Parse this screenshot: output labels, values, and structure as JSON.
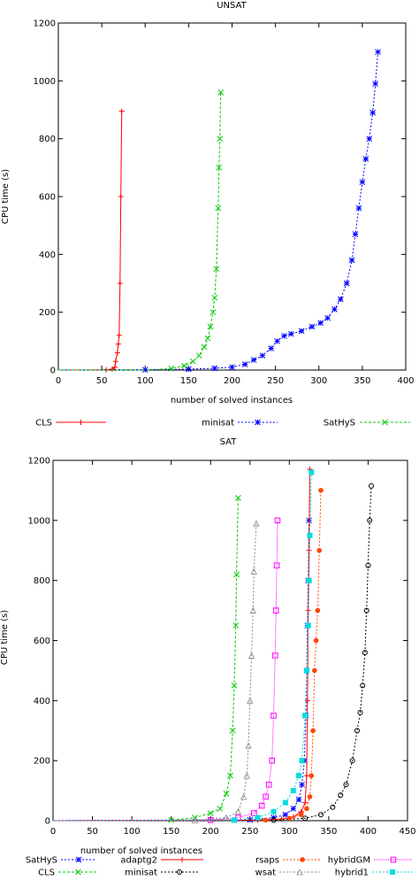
{
  "chart_data": [
    {
      "type": "line",
      "title": "UNSAT",
      "xlabel": "number of solved instances",
      "ylabel": "CPU time (s)",
      "xlim": [
        0,
        400
      ],
      "ylim": [
        0,
        1200
      ],
      "x_ticks": [
        0,
        50,
        100,
        150,
        200,
        250,
        300,
        350,
        400
      ],
      "y_ticks": [
        0,
        200,
        400,
        600,
        800,
        1000,
        1200
      ],
      "grid": false,
      "legend_position": "bottom",
      "series": [
        {
          "name": "CLS",
          "color": "#ff0000",
          "marker": "plus",
          "dash": "",
          "points": [
            [
              0,
              0
            ],
            [
              30,
              0
            ],
            [
              55,
              1
            ],
            [
              62,
              3
            ],
            [
              65,
              10
            ],
            [
              66,
              30
            ],
            [
              68,
              60
            ],
            [
              69,
              90
            ],
            [
              70,
              120
            ],
            [
              71,
              300
            ],
            [
              72,
              600
            ],
            [
              73,
              895
            ]
          ]
        },
        {
          "name": "minisat",
          "color": "#0000ff",
          "marker": "star",
          "dash": "2,2",
          "points": [
            [
              0,
              0
            ],
            [
              100,
              1
            ],
            [
              150,
              3
            ],
            [
              180,
              6
            ],
            [
              200,
              10
            ],
            [
              215,
              20
            ],
            [
              225,
              35
            ],
            [
              235,
              50
            ],
            [
              245,
              75
            ],
            [
              252,
              100
            ],
            [
              260,
              118
            ],
            [
              268,
              125
            ],
            [
              280,
              135
            ],
            [
              292,
              150
            ],
            [
              302,
              163
            ],
            [
              310,
              180
            ],
            [
              318,
              210
            ],
            [
              325,
              245
            ],
            [
              332,
              300
            ],
            [
              338,
              380
            ],
            [
              342,
              470
            ],
            [
              346,
              560
            ],
            [
              350,
              650
            ],
            [
              354,
              730
            ],
            [
              358,
              800
            ],
            [
              362,
              890
            ],
            [
              365,
              990
            ],
            [
              368,
              1100
            ]
          ]
        },
        {
          "name": "SatHyS",
          "color": "#00cc00",
          "marker": "cross",
          "dash": "3,2",
          "points": [
            [
              0,
              0
            ],
            [
              100,
              0
            ],
            [
              130,
              5
            ],
            [
              145,
              15
            ],
            [
              155,
              30
            ],
            [
              162,
              50
            ],
            [
              168,
              80
            ],
            [
              172,
              110
            ],
            [
              175,
              150
            ],
            [
              178,
              200
            ],
            [
              180,
              250
            ],
            [
              182,
              350
            ],
            [
              184,
              560
            ],
            [
              185,
              700
            ],
            [
              186,
              800
            ],
            [
              187,
              960
            ]
          ]
        }
      ]
    },
    {
      "type": "line",
      "title": "SAT",
      "xlabel": "number of solved instances",
      "ylabel": "CPU time (s)",
      "xlim": [
        0,
        450
      ],
      "ylim": [
        0,
        1200
      ],
      "x_ticks": [
        0,
        50,
        100,
        150,
        200,
        250,
        300,
        350,
        400,
        450
      ],
      "y_ticks": [
        0,
        200,
        400,
        600,
        800,
        1000,
        1200
      ],
      "grid": false,
      "legend_position": "bottom",
      "series": [
        {
          "name": "SatHyS",
          "color": "#0000ff",
          "marker": "star",
          "dash": "2,2",
          "points": [
            [
              0,
              0
            ],
            [
              250,
              3
            ],
            [
              280,
              10
            ],
            [
              295,
              20
            ],
            [
              305,
              40
            ],
            [
              312,
              70
            ],
            [
              316,
              120
            ],
            [
              319,
              200
            ],
            [
              321,
              350
            ],
            [
              322,
              500
            ],
            [
              323,
              650
            ],
            [
              324,
              800
            ],
            [
              325,
              1000
            ]
          ]
        },
        {
          "name": "CLS",
          "color": "#00cc00",
          "marker": "cross",
          "dash": "3,2",
          "points": [
            [
              0,
              0
            ],
            [
              150,
              2
            ],
            [
              180,
              10
            ],
            [
              200,
              25
            ],
            [
              212,
              40
            ],
            [
              220,
              90
            ],
            [
              225,
              150
            ],
            [
              228,
              300
            ],
            [
              230,
              450
            ],
            [
              232,
              650
            ],
            [
              233,
              820
            ],
            [
              235,
              1075
            ]
          ]
        },
        {
          "name": "adaptg2",
          "color": "#ff0000",
          "marker": "plus",
          "dash": "",
          "points": [
            [
              0,
              0
            ],
            [
              260,
              2
            ],
            [
              290,
              5
            ],
            [
              305,
              12
            ],
            [
              315,
              30
            ],
            [
              320,
              60
            ],
            [
              322,
              150
            ],
            [
              323,
              400
            ],
            [
              324,
              700
            ],
            [
              325,
              900
            ],
            [
              326,
              1170
            ]
          ]
        },
        {
          "name": "minisat",
          "color": "#000000",
          "marker": "circle",
          "dash": "2,2",
          "points": [
            [
              0,
              0
            ],
            [
              280,
              2
            ],
            [
              320,
              8
            ],
            [
              340,
              20
            ],
            [
              355,
              45
            ],
            [
              365,
              85
            ],
            [
              372,
              120
            ],
            [
              380,
              200
            ],
            [
              386,
              300
            ],
            [
              390,
              360
            ],
            [
              393,
              450
            ],
            [
              396,
              560
            ],
            [
              398,
              700
            ],
            [
              400,
              850
            ],
            [
              402,
              1000
            ],
            [
              404,
              1115
            ]
          ]
        },
        {
          "name": "rsaps",
          "color": "#ff4400",
          "marker": "dot",
          "dash": "2,2",
          "points": [
            [
              0,
              0
            ],
            [
              270,
              2
            ],
            [
              300,
              8
            ],
            [
              315,
              20
            ],
            [
              322,
              40
            ],
            [
              326,
              80
            ],
            [
              328,
              150
            ],
            [
              330,
              300
            ],
            [
              332,
              500
            ],
            [
              334,
              600
            ],
            [
              336,
              700
            ],
            [
              338,
              900
            ],
            [
              340,
              1100
            ]
          ]
        },
        {
          "name": "wsat",
          "color": "#888888",
          "marker": "triangle",
          "dash": "2,2",
          "points": [
            [
              0,
              0
            ],
            [
              180,
              2
            ],
            [
              220,
              10
            ],
            [
              235,
              30
            ],
            [
              242,
              80
            ],
            [
              246,
              150
            ],
            [
              248,
              250
            ],
            [
              250,
              400
            ],
            [
              252,
              550
            ],
            [
              254,
              700
            ],
            [
              255,
              830
            ],
            [
              258,
              990
            ]
          ]
        },
        {
          "name": "hybridGM",
          "color": "#ff00ff",
          "marker": "square",
          "dash": "1,1",
          "points": [
            [
              0,
              0
            ],
            [
              200,
              2
            ],
            [
              235,
              10
            ],
            [
              255,
              25
            ],
            [
              265,
              50
            ],
            [
              270,
              80
            ],
            [
              274,
              120
            ],
            [
              278,
              200
            ],
            [
              280,
              350
            ],
            [
              282,
              550
            ],
            [
              283,
              700
            ],
            [
              284,
              850
            ],
            [
              285,
              1000
            ]
          ]
        },
        {
          "name": "hybrid1",
          "color": "#00dddd",
          "marker": "filled-square",
          "dash": "2,2",
          "points": [
            [
              0,
              0
            ],
            [
              230,
              2
            ],
            [
              260,
              10
            ],
            [
              280,
              30
            ],
            [
              295,
              60
            ],
            [
              305,
              100
            ],
            [
              312,
              150
            ],
            [
              316,
              200
            ],
            [
              320,
              350
            ],
            [
              322,
              500
            ],
            [
              324,
              650
            ],
            [
              325,
              800
            ],
            [
              326,
              950
            ],
            [
              328,
              1160
            ]
          ]
        }
      ]
    }
  ]
}
